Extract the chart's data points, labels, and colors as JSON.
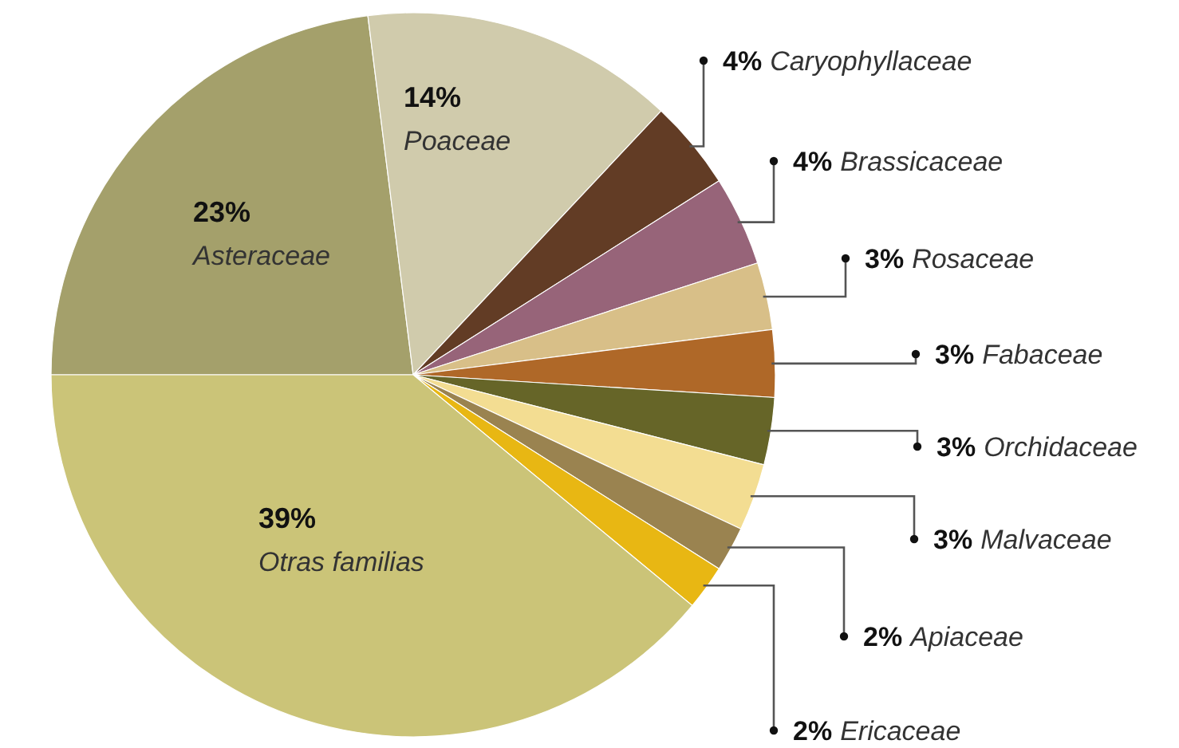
{
  "chart_data": {
    "type": "pie",
    "categories": [
      "Asteraceae",
      "Poaceae",
      "Caryophyllaceae",
      "Brassicaceae",
      "Rosaceae",
      "Fabaceae",
      "Orchidaceae",
      "Malvaceae",
      "Apiaceae",
      "Ericaceae",
      "Otras familias"
    ],
    "values": [
      23,
      14,
      4,
      4,
      3,
      3,
      3,
      3,
      2,
      2,
      39
    ],
    "colors": [
      "#a4a06b",
      "#d0cbac",
      "#623c25",
      "#976479",
      "#d8bf88",
      "#af6828",
      "#666528",
      "#f3dd92",
      "#9a8350",
      "#e8b713",
      "#cbc478"
    ],
    "value_labels": [
      "23%",
      "14%",
      "4%",
      "4%",
      "3%",
      "3%",
      "3%",
      "3%",
      "2%",
      "2%",
      "39%"
    ]
  }
}
